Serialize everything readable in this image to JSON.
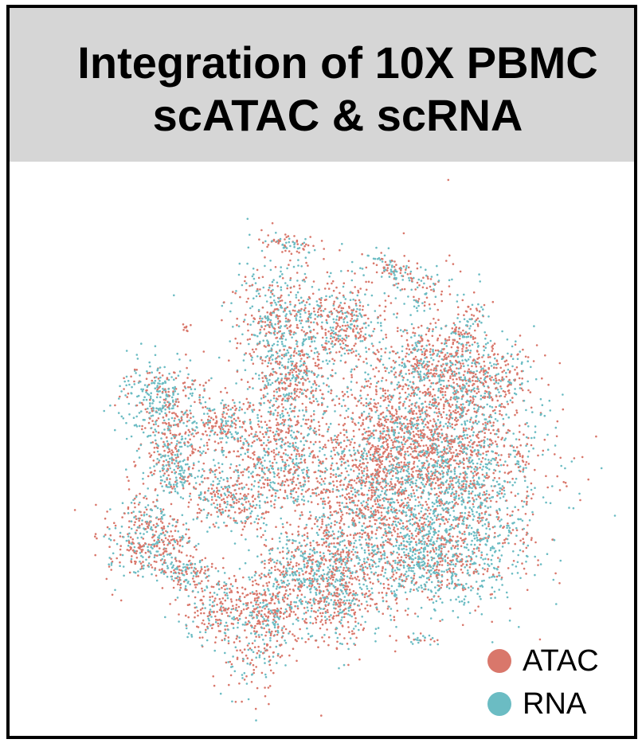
{
  "title_line1": "Integration of 10X PBMC",
  "title_line2": "scATAC & scRNA",
  "colors": {
    "ATAC": "#d9776b",
    "RNA": "#6bbcc3",
    "title_band": "#d6d6d6"
  },
  "chart_data": {
    "type": "scatter",
    "title": "Integration of 10X PBMC scATAC & scRNA",
    "xlabel": "",
    "ylabel": "",
    "grid": false,
    "legend_placement": "bottom-right",
    "series": [
      {
        "name": "ATAC",
        "color": "#d9776b"
      },
      {
        "name": "RNA",
        "color": "#6bbcc3"
      }
    ]
  }
}
